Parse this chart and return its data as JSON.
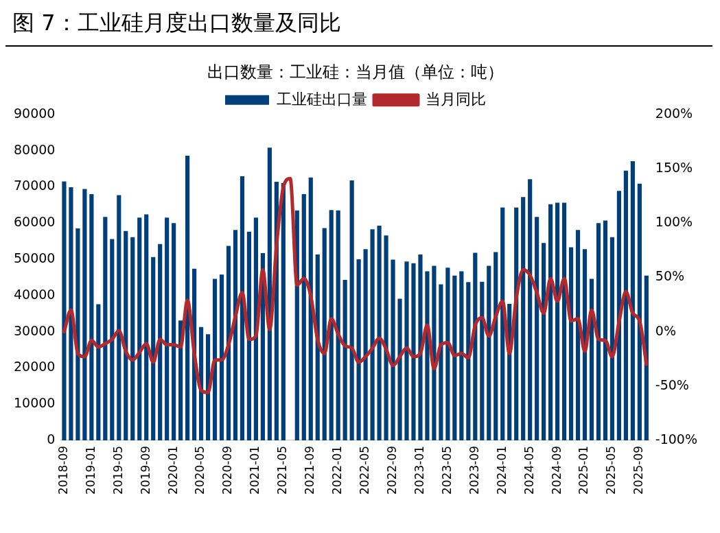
{
  "chart_data": {
    "type": "bar",
    "title": "图 7：工业硅月度出口数量及同比",
    "subtitle": "出口数量：工业硅：当月值（单位：吨）",
    "categories": [
      "2018-09",
      null,
      null,
      null,
      "2019-01",
      null,
      null,
      null,
      "2019-05",
      null,
      null,
      null,
      "2019-09",
      null,
      null,
      null,
      "2020-01",
      null,
      null,
      null,
      "2020-05",
      null,
      null,
      null,
      "2020-09",
      null,
      null,
      null,
      "2021-01",
      null,
      null,
      null,
      "2021-05",
      null,
      null,
      null,
      "2021-09",
      null,
      null,
      null,
      "2022-01",
      null,
      null,
      null,
      "2022-05",
      null,
      null,
      null,
      "2022-09",
      null,
      null,
      null,
      "2023-01",
      null,
      null,
      null,
      "2023-05",
      null,
      null,
      null,
      "2023-09",
      null,
      null,
      null,
      "2024-01",
      null,
      null,
      null,
      "2024-05",
      null,
      null,
      null,
      "2024-09",
      null,
      null,
      null,
      "2025-01",
      null,
      null,
      null,
      "2025-05",
      null,
      null,
      null,
      "2025-09",
      null
    ],
    "series": [
      {
        "name": "工业硅出口量",
        "color": "#003f7a",
        "values": [
          71500,
          69900,
          58500,
          69400,
          68000,
          37600,
          61700,
          55600,
          67700,
          57800,
          56100,
          61500,
          62400,
          50600,
          54200,
          61500,
          60000,
          33100,
          78600,
          47400,
          31300,
          29300,
          44600,
          45800,
          53700,
          58100,
          72900,
          57600,
          61500,
          51700,
          80800,
          71400,
          71000,
          null,
          63500,
          68000,
          72600,
          51300,
          58600,
          63600,
          63500,
          44300,
          71800,
          50000,
          52800,
          58300,
          59300,
          56600,
          49900,
          39100,
          49400,
          48900,
          51300,
          46700,
          48200,
          43100,
          47700,
          45500,
          46700,
          43700,
          51800,
          43800,
          48200,
          52000,
          64300,
          37700,
          64300,
          67200,
          72100,
          61700,
          54500,
          65200,
          65600,
          65600,
          53300,
          58100,
          52800,
          44600,
          60000,
          60700,
          56100,
          68900,
          74500,
          77100,
          70900,
          45500
        ]
      },
      {
        "name": "当月同比",
        "type": "line",
        "axis": "y2",
        "color": "#b22a2e",
        "values": [
          0,
          20,
          -20,
          -23,
          -8,
          -14,
          -11,
          -7,
          1,
          -18,
          -26,
          -19,
          -11,
          -28,
          -7,
          -12,
          -12,
          -14,
          29,
          -20,
          -54,
          -56,
          -26,
          -26,
          -12,
          14,
          36,
          -7,
          -4,
          57,
          2,
          79,
          133,
          141,
          43,
          49,
          33,
          -7,
          -20,
          12,
          -2,
          -13,
          -15,
          -28,
          -23,
          -15,
          -6,
          -16,
          -31,
          -23,
          -15,
          -23,
          -20,
          6,
          -34,
          -12,
          -10,
          -22,
          -20,
          -24,
          6,
          13,
          -4,
          14,
          28,
          -20,
          31,
          57,
          52,
          36,
          17,
          49,
          28,
          49,
          10,
          12,
          -18,
          20,
          -7,
          -8,
          -23,
          9,
          37,
          17,
          10,
          -30
        ]
      }
    ],
    "ylim": [
      0,
      90000
    ],
    "yticks": [
      0,
      10000,
      20000,
      30000,
      40000,
      50000,
      60000,
      70000,
      80000,
      90000
    ],
    "y2lim": [
      -100,
      200
    ],
    "y2ticks": [
      {
        "value": -100,
        "label": "-100%"
      },
      {
        "value": -50,
        "label": "-50%"
      },
      {
        "value": 0,
        "label": "0%"
      },
      {
        "value": 50,
        "label": "50%"
      },
      {
        "value": 100,
        "label": "100%"
      },
      {
        "value": 150,
        "label": "150%"
      },
      {
        "value": 200,
        "label": "200%"
      }
    ],
    "grid": false,
    "legend": "top"
  }
}
